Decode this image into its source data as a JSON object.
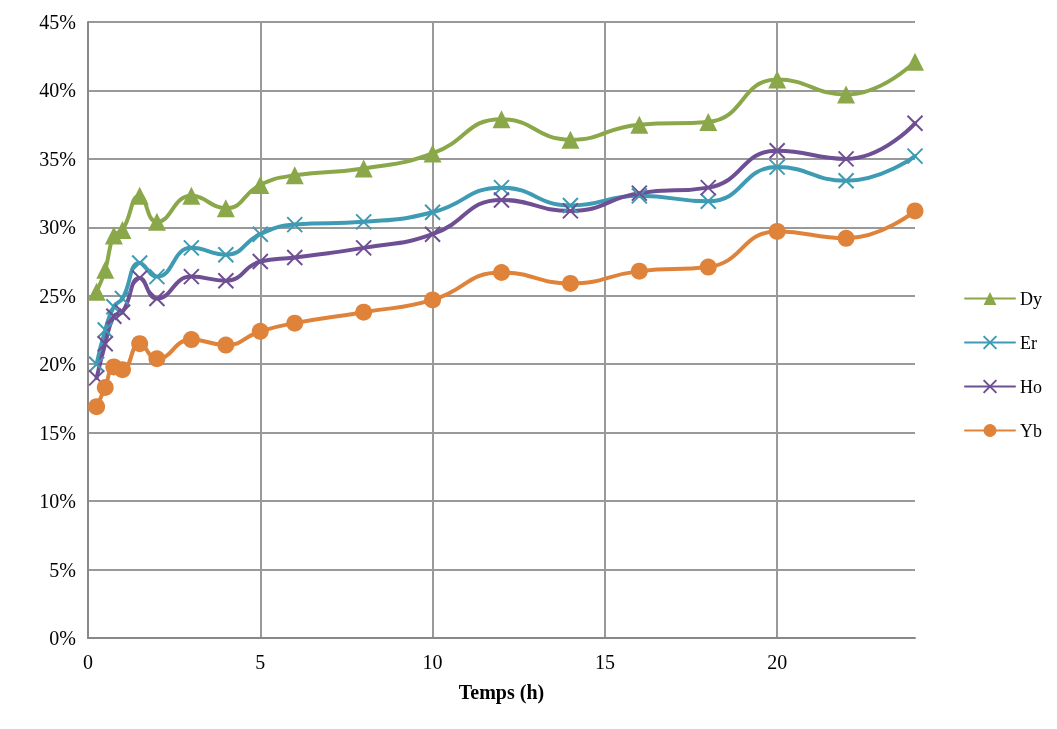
{
  "chart_data": {
    "type": "line",
    "xlabel": "Temps (h)",
    "x": [
      0.25,
      0.5,
      0.75,
      1,
      1.5,
      2,
      3,
      4,
      5,
      6,
      8,
      10,
      12,
      14,
      16,
      18,
      20,
      22,
      24
    ],
    "xlim": [
      0,
      24
    ],
    "xticks": [
      0,
      5,
      10,
      15,
      20
    ],
    "ylim": [
      0,
      45
    ],
    "yticks": [
      {
        "value": 0,
        "label": "0%"
      },
      {
        "value": 5,
        "label": "5%"
      },
      {
        "value": 10,
        "label": "10%"
      },
      {
        "value": 15,
        "label": "15%"
      },
      {
        "value": 20,
        "label": "20%"
      },
      {
        "value": 25,
        "label": "25%"
      },
      {
        "value": 30,
        "label": "30%"
      },
      {
        "value": 35,
        "label": "35%"
      },
      {
        "value": 40,
        "label": "40%"
      },
      {
        "value": 45,
        "label": "45%"
      }
    ],
    "grid": true,
    "legend": "right",
    "line_style": "solid",
    "series": [
      {
        "name": "Dy",
        "color": "#8aa84a",
        "marker": "triangle",
        "values": [
          25.3,
          26.9,
          29.4,
          29.8,
          32.3,
          30.4,
          32.3,
          31.4,
          33.1,
          33.8,
          34.3,
          35.4,
          37.9,
          36.4,
          37.5,
          37.7,
          40.8,
          39.7,
          42.1
        ]
      },
      {
        "name": "Er",
        "color": "#3e9bb3",
        "marker": "cross",
        "values": [
          20.0,
          22.5,
          24.2,
          24.8,
          27.4,
          26.4,
          28.5,
          28.0,
          29.5,
          30.2,
          30.4,
          31.1,
          32.9,
          31.6,
          32.3,
          31.9,
          34.4,
          33.4,
          35.2
        ]
      },
      {
        "name": "Ho",
        "color": "#6f4f94",
        "marker": "cross",
        "values": [
          19.0,
          21.5,
          23.5,
          23.8,
          26.3,
          24.8,
          26.4,
          26.1,
          27.5,
          27.8,
          28.5,
          29.5,
          32.0,
          31.2,
          32.5,
          32.9,
          35.6,
          35.0,
          37.6
        ]
      },
      {
        "name": "Yb",
        "color": "#e0833a",
        "marker": "circle",
        "values": [
          16.9,
          18.3,
          19.8,
          19.6,
          21.5,
          20.4,
          21.8,
          21.4,
          22.4,
          23.0,
          23.8,
          24.7,
          26.7,
          25.9,
          26.8,
          27.1,
          29.7,
          29.2,
          31.2
        ]
      }
    ]
  }
}
